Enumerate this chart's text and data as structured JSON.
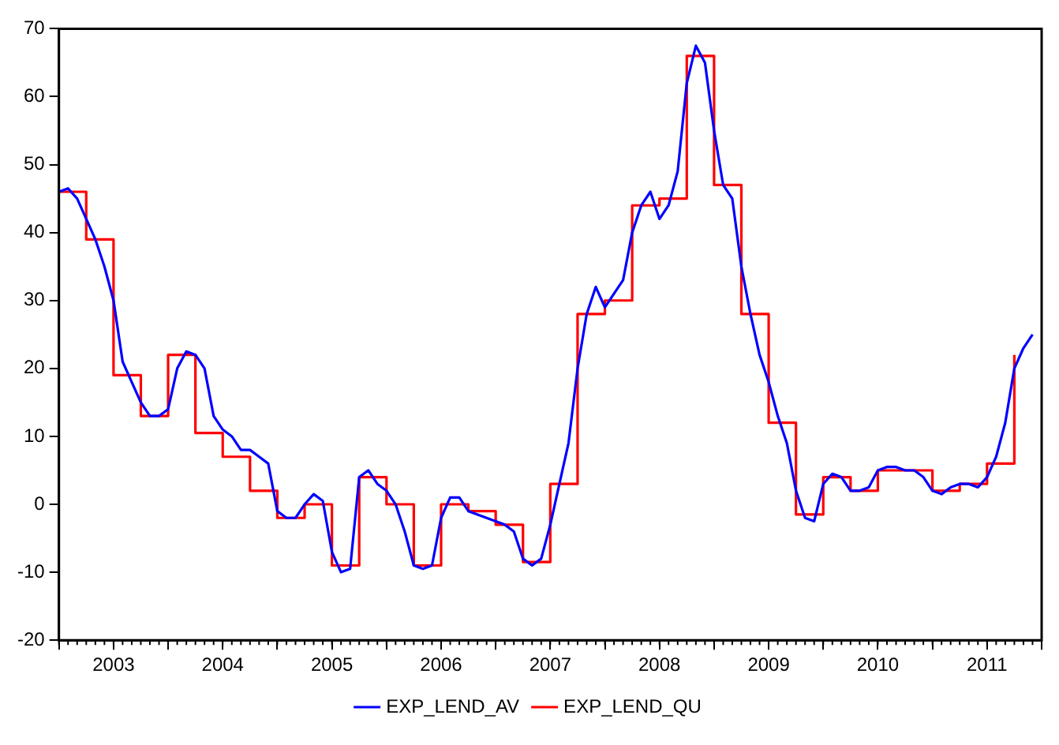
{
  "chart_data": {
    "type": "line",
    "xlim": [
      "2003-01",
      "2012-01"
    ],
    "ylim": [
      -20,
      70
    ],
    "yticks": [
      -20,
      -10,
      0,
      10,
      20,
      30,
      40,
      50,
      60,
      70
    ],
    "xticks": [
      {
        "value": "2003-01",
        "label": null
      },
      {
        "value": "2003-07",
        "label": "2003"
      },
      {
        "value": "2004-01",
        "label": null
      },
      {
        "value": "2004-07",
        "label": "2004"
      },
      {
        "value": "2005-01",
        "label": null
      },
      {
        "value": "2005-07",
        "label": "2005"
      },
      {
        "value": "2006-01",
        "label": null
      },
      {
        "value": "2006-07",
        "label": "2006"
      },
      {
        "value": "2007-01",
        "label": null
      },
      {
        "value": "2007-07",
        "label": "2007"
      },
      {
        "value": "2008-01",
        "label": null
      },
      {
        "value": "2008-07",
        "label": "2008"
      },
      {
        "value": "2009-01",
        "label": null
      },
      {
        "value": "2009-07",
        "label": "2009"
      },
      {
        "value": "2010-01",
        "label": null
      },
      {
        "value": "2010-07",
        "label": "2010"
      },
      {
        "value": "2011-01",
        "label": null
      },
      {
        "value": "2011-07",
        "label": "2011"
      },
      {
        "value": "2012-01",
        "label": null
      }
    ],
    "grid": false,
    "legend": "bottom",
    "marker": "none",
    "line_style": "solid",
    "series": [
      {
        "name": "EXP_LEND_AV",
        "color": "#0000ff",
        "x": [
          "2003-01",
          "2003-02",
          "2003-03",
          "2003-04",
          "2003-05",
          "2003-06",
          "2003-07",
          "2003-08",
          "2003-09",
          "2003-10",
          "2003-11",
          "2003-12",
          "2004-01",
          "2004-02",
          "2004-03",
          "2004-04",
          "2004-05",
          "2004-06",
          "2004-07",
          "2004-08",
          "2004-09",
          "2004-10",
          "2004-11",
          "2004-12",
          "2005-01",
          "2005-02",
          "2005-03",
          "2005-04",
          "2005-05",
          "2005-06",
          "2005-07",
          "2005-08",
          "2005-09",
          "2005-10",
          "2005-11",
          "2005-12",
          "2006-01",
          "2006-02",
          "2006-03",
          "2006-04",
          "2006-05",
          "2006-06",
          "2006-07",
          "2006-08",
          "2006-09",
          "2006-10",
          "2006-11",
          "2006-12",
          "2007-01",
          "2007-02",
          "2007-03",
          "2007-04",
          "2007-05",
          "2007-06",
          "2007-07",
          "2007-08",
          "2007-09",
          "2007-10",
          "2007-11",
          "2007-12",
          "2008-01",
          "2008-02",
          "2008-03",
          "2008-04",
          "2008-05",
          "2008-06",
          "2008-07",
          "2008-08",
          "2008-09",
          "2008-10",
          "2008-11",
          "2008-12",
          "2009-01",
          "2009-02",
          "2009-03",
          "2009-04",
          "2009-05",
          "2009-06",
          "2009-07",
          "2009-08",
          "2009-09",
          "2009-10",
          "2009-11",
          "2009-12",
          "2010-01",
          "2010-02",
          "2010-03",
          "2010-04",
          "2010-05",
          "2010-06",
          "2010-07",
          "2010-08",
          "2010-09",
          "2010-10",
          "2010-11",
          "2010-12",
          "2011-01",
          "2011-02",
          "2011-03",
          "2011-04",
          "2011-05",
          "2011-06",
          "2011-07",
          "2011-08",
          "2011-09",
          "2011-10",
          "2011-11",
          "2011-12"
        ],
        "values": [
          46,
          46.5,
          45,
          42,
          39,
          35,
          30,
          21,
          18,
          15,
          13,
          13,
          14,
          20,
          22.5,
          22,
          20,
          13,
          11,
          10,
          8,
          8,
          7,
          6,
          -1,
          -2,
          -2,
          0,
          1.5,
          0.5,
          -7,
          -10,
          -9.5,
          4,
          5,
          3,
          2,
          0,
          -4,
          -9,
          -9.5,
          -9,
          -2,
          1,
          1,
          -1,
          -1.5,
          -2,
          -2.5,
          -3,
          -4,
          -8,
          -9,
          -8,
          -3,
          3,
          9,
          20,
          28,
          32,
          29,
          31,
          33,
          40,
          44,
          46,
          42,
          44,
          49,
          62,
          67.5,
          65,
          55,
          47,
          45,
          35,
          28,
          22,
          18,
          13,
          9,
          2,
          -2,
          -2.5,
          3,
          4.5,
          4,
          2,
          2,
          2.5,
          5,
          5.5,
          5.5,
          5,
          5,
          4,
          2,
          1.5,
          2.5,
          3,
          3,
          2.5,
          4,
          7,
          12,
          20,
          23,
          25
        ]
      },
      {
        "name": "EXP_LEND_QU",
        "color": "#ff0000",
        "type": "step",
        "x": [
          "2003-01",
          "2003-04",
          "2003-07",
          "2003-10",
          "2004-01",
          "2004-04",
          "2004-07",
          "2004-10",
          "2005-01",
          "2005-04",
          "2005-07",
          "2005-10",
          "2006-01",
          "2006-04",
          "2006-07",
          "2006-10",
          "2007-01",
          "2007-04",
          "2007-07",
          "2007-10",
          "2008-01",
          "2008-04",
          "2008-07",
          "2008-10",
          "2009-01",
          "2009-04",
          "2009-07",
          "2009-10",
          "2010-01",
          "2010-04",
          "2010-07",
          "2010-10",
          "2011-01",
          "2011-04",
          "2011-07",
          "2011-10"
        ],
        "values": [
          46,
          39,
          19,
          13,
          22,
          10.5,
          7,
          2,
          -2,
          0,
          -9,
          4,
          0,
          -9,
          0,
          -1,
          -3,
          -8.5,
          3,
          28,
          30,
          44,
          45,
          66,
          47,
          28,
          12,
          -1.5,
          4,
          2,
          5,
          5,
          2,
          3,
          6,
          22
        ]
      }
    ]
  }
}
